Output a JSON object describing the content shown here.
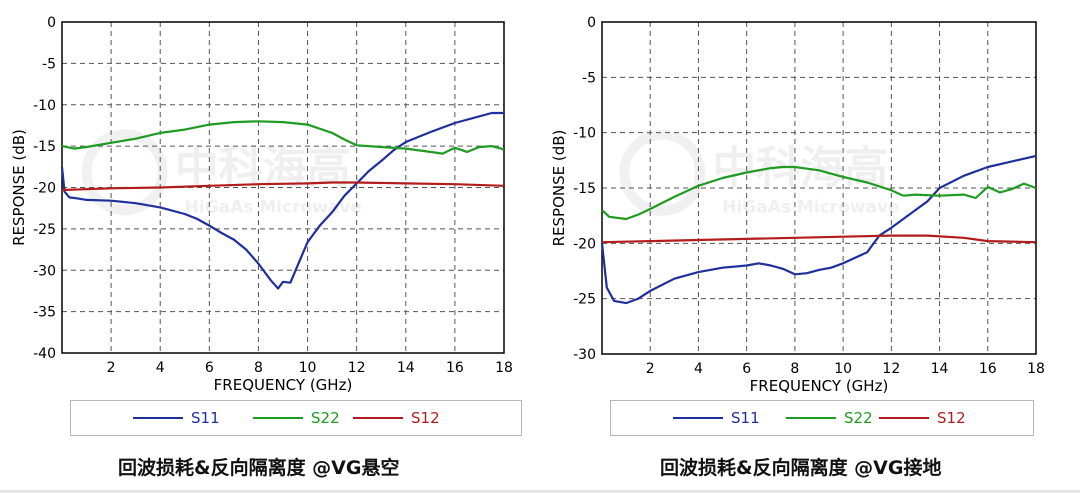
{
  "chart_data": [
    {
      "type": "line",
      "title": "",
      "xlabel": "FREQUENCY (GHz)",
      "ylabel": "RESPONSE (dB)",
      "xlim": [
        0,
        18
      ],
      "ylim": [
        -40,
        0
      ],
      "xticks": [
        2,
        4,
        6,
        8,
        10,
        12,
        14,
        16,
        18
      ],
      "yticks": [
        0,
        -5,
        -10,
        -15,
        -20,
        -25,
        -30,
        -35,
        -40
      ],
      "grid": true,
      "legend_position": "bottom",
      "caption": "回波损耗&反向隔离度 @VG悬空",
      "watermark": [
        "中科海高",
        "HiGaAs Microwave"
      ],
      "series": [
        {
          "name": "S11",
          "color": "#1f2f9c",
          "x": [
            0,
            0.1,
            0.3,
            0.6,
            1,
            2,
            3,
            4,
            5,
            5.5,
            6,
            6.5,
            7,
            7.5,
            8,
            8.5,
            8.8,
            9,
            9.3,
            9.6,
            10,
            10.5,
            11,
            11.5,
            12,
            12.5,
            13,
            13.5,
            14,
            15,
            16,
            17,
            17.5,
            18
          ],
          "y": [
            -17.5,
            -20.5,
            -21.2,
            -21.3,
            -21.5,
            -21.6,
            -21.9,
            -22.4,
            -23.2,
            -23.8,
            -24.6,
            -25.5,
            -26.3,
            -27.5,
            -29.2,
            -31.2,
            -32.2,
            -31.4,
            -31.5,
            -29.4,
            -26.6,
            -24.6,
            -23,
            -21,
            -19.5,
            -18,
            -16.8,
            -15.5,
            -14.5,
            -13.3,
            -12.2,
            -11.4,
            -11,
            -11
          ]
        },
        {
          "name": "S22",
          "color": "#1f9a22",
          "x": [
            0,
            0.5,
            1,
            2,
            3,
            4,
            5,
            6,
            7,
            8,
            9,
            10,
            11,
            11.5,
            12,
            13,
            14,
            15,
            15.5,
            16,
            16.5,
            17,
            17.5,
            18
          ],
          "y": [
            -15,
            -15.3,
            -15.1,
            -14.6,
            -14.1,
            -13.4,
            -13,
            -12.4,
            -12.1,
            -12,
            -12.1,
            -12.4,
            -13.4,
            -14.2,
            -14.9,
            -15.1,
            -15.3,
            -15.7,
            -15.9,
            -15.2,
            -15.7,
            -15.1,
            -15,
            -15.4
          ]
        },
        {
          "name": "S12",
          "color": "#b21c1c",
          "x": [
            0,
            2,
            4,
            6,
            8,
            10,
            11,
            12,
            14,
            16,
            18
          ],
          "y": [
            -20.3,
            -20.1,
            -20,
            -19.8,
            -19.6,
            -19.5,
            -19.4,
            -19.4,
            -19.5,
            -19.6,
            -19.8
          ]
        }
      ]
    },
    {
      "type": "line",
      "title": "",
      "xlabel": "FREQUENCY (GHz)",
      "ylabel": "RESPONSE (dB)",
      "xlim": [
        0,
        18
      ],
      "ylim": [
        -30,
        0
      ],
      "xticks": [
        2,
        4,
        6,
        8,
        10,
        12,
        14,
        16,
        18
      ],
      "yticks": [
        0,
        -5,
        -10,
        -15,
        -20,
        -25,
        -30
      ],
      "grid": true,
      "legend_position": "bottom",
      "caption": "回波损耗&反向隔离度 @VG接地",
      "watermark": [
        "中科海高",
        "HiGaAs Microwave"
      ],
      "series": [
        {
          "name": "S11",
          "color": "#1f2f9c",
          "x": [
            0,
            0.2,
            0.5,
            1,
            1.5,
            2,
            3,
            4,
            5,
            6,
            6.5,
            7,
            7.5,
            8,
            8.5,
            9,
            9.5,
            10,
            10.5,
            11,
            11.5,
            12,
            13,
            13.5,
            14,
            15,
            16,
            17,
            18
          ],
          "y": [
            -20,
            -24,
            -25.2,
            -25.4,
            -25,
            -24.3,
            -23.2,
            -22.6,
            -22.2,
            -22,
            -21.8,
            -22,
            -22.3,
            -22.8,
            -22.7,
            -22.4,
            -22.2,
            -21.8,
            -21.3,
            -20.8,
            -19.3,
            -18.6,
            -17,
            -16.2,
            -15,
            -13.9,
            -13.1,
            -12.6,
            -12.1
          ]
        },
        {
          "name": "S22",
          "color": "#1f9a22",
          "x": [
            0,
            0.3,
            1,
            1.5,
            2,
            3,
            4,
            5,
            6,
            7,
            7.5,
            8,
            9,
            10,
            11,
            12,
            12.5,
            13,
            14,
            15,
            15.5,
            16,
            16.5,
            17,
            17.5,
            18
          ],
          "y": [
            -17,
            -17.6,
            -17.8,
            -17.4,
            -16.9,
            -15.8,
            -14.8,
            -14.1,
            -13.6,
            -13.2,
            -13.1,
            -13.1,
            -13.4,
            -14,
            -14.5,
            -15.2,
            -15.7,
            -15.6,
            -15.7,
            -15.6,
            -15.9,
            -14.9,
            -15.4,
            -15.1,
            -14.6,
            -15
          ]
        },
        {
          "name": "S12",
          "color": "#b21c1c",
          "x": [
            0,
            2,
            4,
            6,
            8,
            10,
            12,
            13.5,
            15,
            16,
            18
          ],
          "y": [
            -19.9,
            -19.8,
            -19.7,
            -19.6,
            -19.5,
            -19.4,
            -19.3,
            -19.3,
            -19.5,
            -19.8,
            -19.9
          ]
        }
      ]
    }
  ]
}
